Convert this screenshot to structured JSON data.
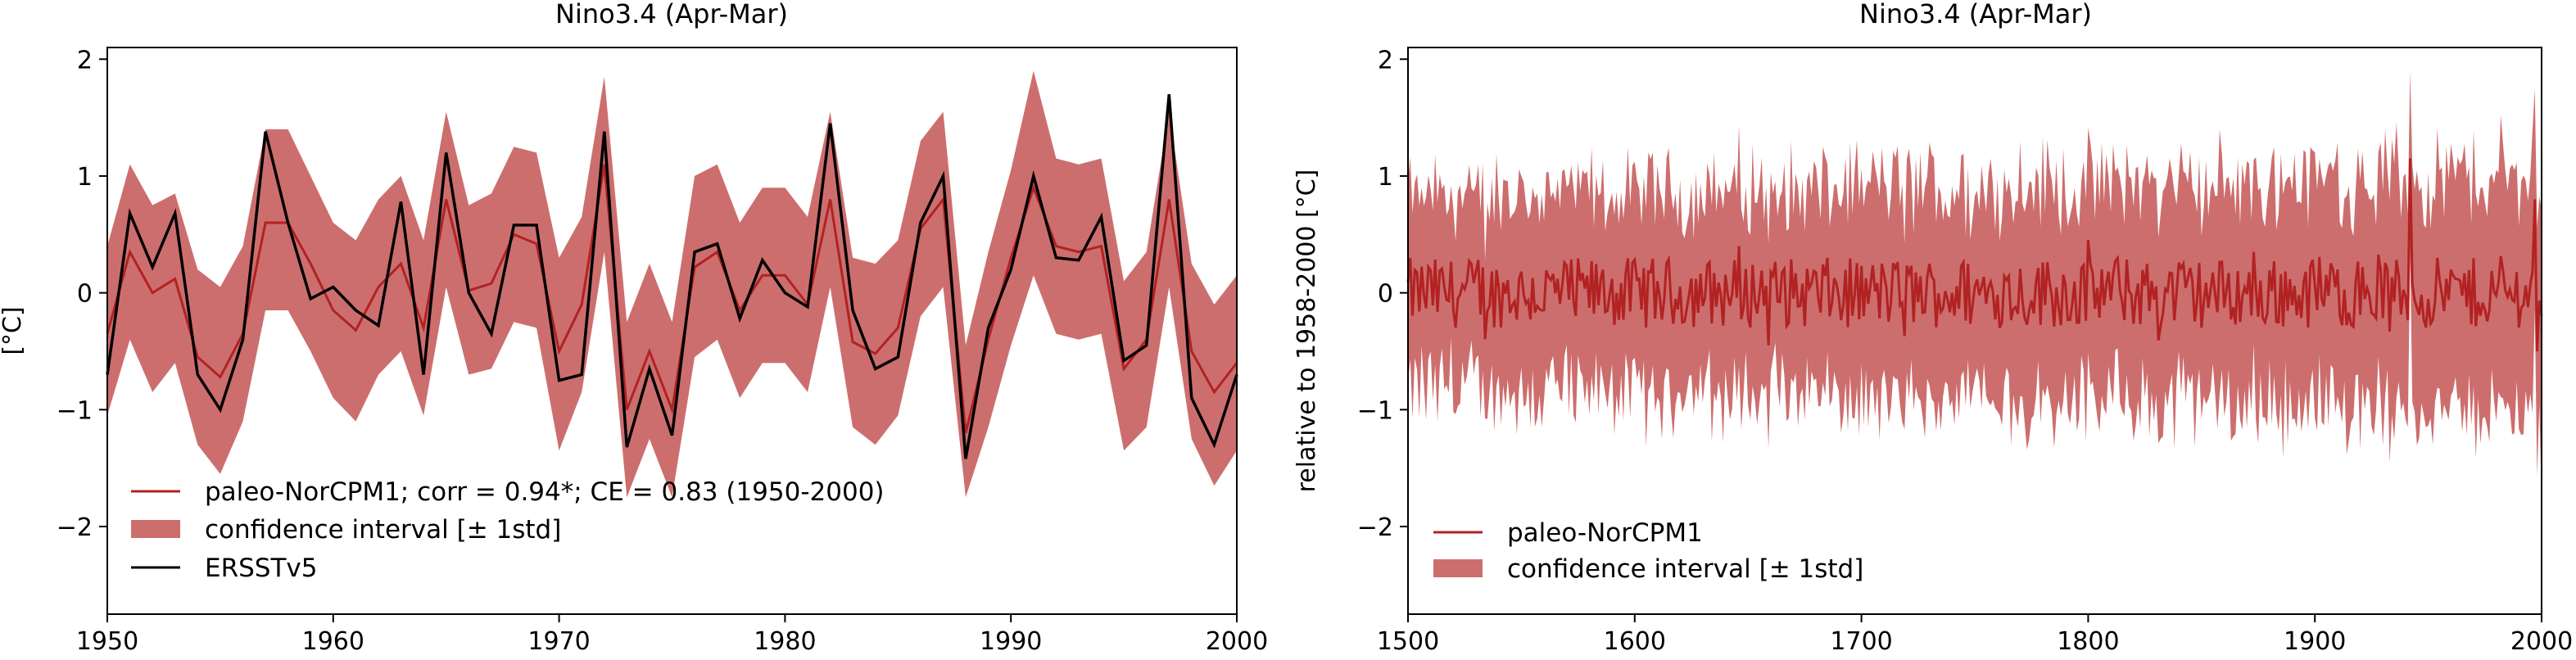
{
  "colors": {
    "paleo_line": "#b22222",
    "band_fill": "#cd6e6e",
    "ersst_line": "#000000",
    "axes": "#000000",
    "background": "#ffffff"
  },
  "chart_data": [
    {
      "type": "line",
      "title": "Nino3.4 (Apr-Mar)",
      "xlabel": "",
      "ylabel": "[°C]",
      "xlim": [
        1950,
        2000
      ],
      "ylim": [
        -2.75,
        2.1
      ],
      "xticks": [
        1950,
        1960,
        1970,
        1980,
        1990,
        2000
      ],
      "xtick_labels": [
        "1950",
        "1960",
        "1970",
        "1980",
        "1990",
        "2000"
      ],
      "yticks": [
        2,
        1,
        0,
        -1,
        -2
      ],
      "ytick_labels": [
        "2",
        "1",
        "0",
        "−1",
        "−2"
      ],
      "grid": false,
      "legend_position": "lower-left",
      "x": [
        1950,
        1951,
        1952,
        1953,
        1954,
        1955,
        1956,
        1957,
        1958,
        1959,
        1960,
        1961,
        1962,
        1963,
        1964,
        1965,
        1966,
        1967,
        1968,
        1969,
        1970,
        1971,
        1972,
        1973,
        1974,
        1975,
        1976,
        1977,
        1978,
        1979,
        1980,
        1981,
        1982,
        1983,
        1984,
        1985,
        1986,
        1987,
        1988,
        1989,
        1990,
        1991,
        1992,
        1993,
        1994,
        1995,
        1996,
        1997,
        1998,
        1999,
        2000
      ],
      "series": [
        {
          "name": "paleo-NorCPM1; corr = 0.94*; CE = 0.83 (1950-2000)",
          "kind": "line",
          "values": [
            -0.35,
            0.35,
            0.0,
            0.12,
            -0.55,
            -0.72,
            -0.35,
            0.6,
            0.6,
            0.25,
            -0.15,
            -0.32,
            0.05,
            0.25,
            -0.3,
            0.8,
            0.02,
            0.08,
            0.5,
            0.42,
            -0.5,
            -0.1,
            1.1,
            -1.0,
            -0.5,
            -1.0,
            0.22,
            0.35,
            -0.15,
            0.15,
            0.15,
            -0.1,
            0.8,
            -0.42,
            -0.52,
            -0.3,
            0.55,
            0.8,
            -1.2,
            -0.4,
            0.3,
            0.9,
            0.4,
            0.35,
            0.4,
            -0.65,
            -0.4,
            0.8,
            -0.5,
            -0.85,
            -0.6
          ]
        },
        {
          "name": "confidence interval [± 1std]",
          "kind": "band",
          "lower": [
            -1.05,
            -0.4,
            -0.85,
            -0.6,
            -1.3,
            -1.55,
            -1.1,
            -0.15,
            -0.15,
            -0.5,
            -0.9,
            -1.1,
            -0.7,
            -0.5,
            -1.05,
            0.05,
            -0.7,
            -0.65,
            -0.25,
            -0.3,
            -1.35,
            -0.85,
            0.35,
            -1.75,
            -1.25,
            -1.75,
            -0.55,
            -0.4,
            -0.9,
            -0.6,
            -0.6,
            -0.85,
            0.05,
            -1.15,
            -1.3,
            -1.05,
            -0.2,
            0.05,
            -1.75,
            -1.15,
            -0.45,
            0.15,
            -0.35,
            -0.4,
            -0.35,
            -1.35,
            -1.15,
            0.05,
            -1.25,
            -1.65,
            -1.35
          ],
          "upper": [
            0.4,
            1.1,
            0.75,
            0.85,
            0.2,
            0.05,
            0.4,
            1.4,
            1.4,
            1.0,
            0.6,
            0.45,
            0.8,
            1.0,
            0.45,
            1.55,
            0.75,
            0.85,
            1.25,
            1.2,
            0.3,
            0.65,
            1.85,
            -0.25,
            0.25,
            -0.25,
            1.0,
            1.1,
            0.6,
            0.9,
            0.9,
            0.65,
            1.55,
            0.3,
            0.25,
            0.45,
            1.3,
            1.55,
            -0.45,
            0.35,
            1.05,
            1.9,
            1.15,
            1.1,
            1.15,
            0.1,
            0.35,
            1.55,
            0.25,
            -0.1,
            0.15
          ]
        },
        {
          "name": "ERSSTv5",
          "kind": "line",
          "values": [
            -0.7,
            0.68,
            0.22,
            0.68,
            -0.7,
            -1.0,
            -0.4,
            1.38,
            0.6,
            -0.05,
            0.05,
            -0.15,
            -0.28,
            0.78,
            -0.7,
            1.2,
            0.0,
            -0.35,
            0.58,
            0.58,
            -0.75,
            -0.7,
            1.38,
            -1.32,
            -0.65,
            -1.22,
            0.35,
            0.42,
            -0.22,
            0.28,
            0.0,
            -0.12,
            1.45,
            -0.15,
            -0.65,
            -0.55,
            0.6,
            1.0,
            -1.42,
            -0.3,
            0.2,
            1.0,
            0.3,
            0.28,
            0.65,
            -0.58,
            -0.45,
            1.7,
            -0.9,
            -1.3,
            -0.7
          ]
        }
      ]
    },
    {
      "type": "line",
      "title": "Nino3.4 (Apr-Mar)",
      "xlabel": "",
      "ylabel": "relative to 1958-2000 [°C]",
      "xlim": [
        1500,
        2000
      ],
      "ylim": [
        -2.75,
        2.1
      ],
      "xticks": [
        1500,
        1600,
        1700,
        1800,
        1900,
        2000
      ],
      "xtick_labels": [
        "1500",
        "1600",
        "1700",
        "1800",
        "1900",
        "2000"
      ],
      "yticks": [
        2,
        1,
        0,
        -1,
        -2
      ],
      "ytick_labels": [
        "2",
        "1",
        "0",
        "−1",
        "−2"
      ],
      "grid": false,
      "legend_position": "lower-left",
      "x_range": [
        1500,
        2000
      ],
      "series": [
        {
          "name": "paleo-NorCPM1",
          "kind": "line",
          "mean_value": 0.0,
          "typical_amplitude": 0.3,
          "peak_points": [
            {
              "x": 1942,
              "y": 1.15
            },
            {
              "x": 1997,
              "y": 0.8
            },
            {
              "x": 1998,
              "y": -0.5
            }
          ]
        },
        {
          "name": "confidence interval [± 1std]",
          "kind": "band",
          "typical_half_width": 0.75,
          "upper_extreme": {
            "x": 1942,
            "y": 1.9
          },
          "lower_extreme": {
            "x": 2000,
            "y": -1.75
          }
        }
      ]
    }
  ]
}
